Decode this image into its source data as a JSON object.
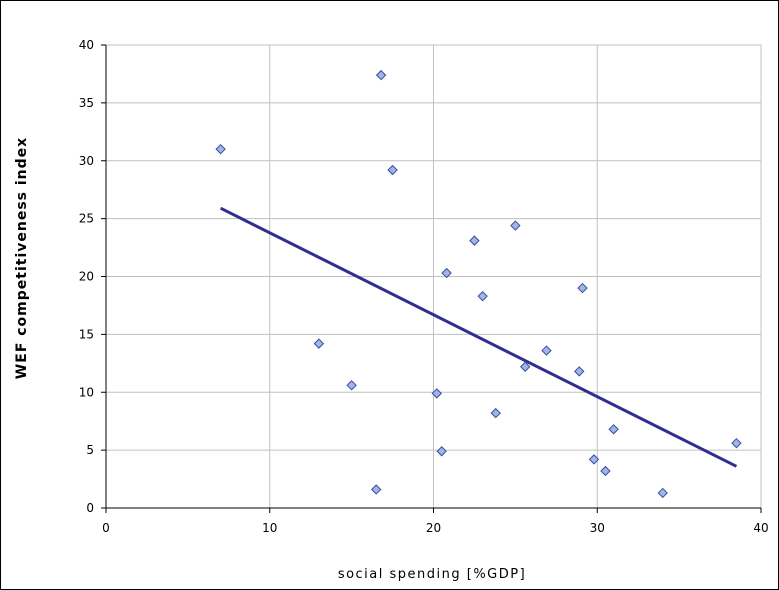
{
  "chart_data": {
    "type": "scatter",
    "title": "",
    "xlabel": "social spending [%GDP]",
    "ylabel": "WEF competitiveness index",
    "xlim": [
      0,
      40
    ],
    "ylim": [
      0,
      40
    ],
    "x_ticks": [
      0,
      10,
      20,
      30,
      40
    ],
    "y_ticks": [
      0,
      5,
      10,
      15,
      20,
      25,
      30,
      35,
      40
    ],
    "grid": true,
    "legend": "none",
    "colors": {
      "points_fill": "#9fb4e8",
      "points_stroke": "#3a4d9a",
      "trendline": "#2e2f8f",
      "grid": "#c0c0c0",
      "axes": "#000000"
    },
    "series": [
      {
        "points": [
          {
            "x": 7.0,
            "y": 31.0
          },
          {
            "x": 16.8,
            "y": 37.4
          },
          {
            "x": 17.5,
            "y": 29.2
          },
          {
            "x": 13.0,
            "y": 14.2
          },
          {
            "x": 15.0,
            "y": 10.6
          },
          {
            "x": 16.5,
            "y": 1.6
          },
          {
            "x": 20.2,
            "y": 9.9
          },
          {
            "x": 20.5,
            "y": 4.9
          },
          {
            "x": 20.8,
            "y": 20.3
          },
          {
            "x": 22.5,
            "y": 23.1
          },
          {
            "x": 23.0,
            "y": 18.3
          },
          {
            "x": 23.8,
            "y": 8.2
          },
          {
            "x": 25.0,
            "y": 24.4
          },
          {
            "x": 25.6,
            "y": 12.2
          },
          {
            "x": 26.9,
            "y": 13.6
          },
          {
            "x": 28.9,
            "y": 11.8
          },
          {
            "x": 29.1,
            "y": 19.0
          },
          {
            "x": 29.8,
            "y": 4.2
          },
          {
            "x": 30.5,
            "y": 3.2
          },
          {
            "x": 31.0,
            "y": 6.8
          },
          {
            "x": 34.0,
            "y": 1.3
          },
          {
            "x": 38.5,
            "y": 5.6
          }
        ]
      }
    ],
    "trendline": {
      "x": [
        7.0,
        38.5
      ],
      "y": [
        25.9,
        3.6
      ]
    }
  }
}
